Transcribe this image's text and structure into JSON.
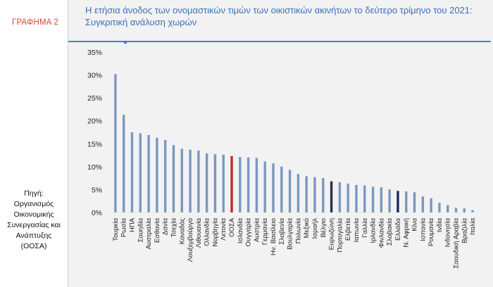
{
  "sidebar": {
    "graph_label": "ΓΡΑΦΗΜΑ 2",
    "source_lines": [
      "Πηγή:",
      "Οργανισμός",
      "Οικονομικής",
      "Συνεργασίας και",
      "Ανάπτυξης",
      "(ΟΟΣΑ)"
    ]
  },
  "header": {
    "title_line1": "Η ετήσια άνοδος των ονομαστικών τιμών των οικιστικών ακινήτων το δεύτερο τρίμηνο του 2021:",
    "title_line2": "Συγκριτική ανάλυση χωρών"
  },
  "colors": {
    "default_bar": "#7a98bf",
    "highlight_red": "#c0282a",
    "highlight_dark": "#2b3242",
    "highlight_navy": "#1b2a63",
    "accent_title": "#3a6fb5"
  },
  "chart_data": {
    "type": "bar",
    "title": "Η ετήσια άνοδος των ονομαστικών τιμών των οικιστικών ακινήτων το δεύτερο τρίμηνο του 2021: Συγκριτική ανάλυση χωρών",
    "ylim": [
      0,
      35
    ],
    "yticks": [
      "0%",
      "5%",
      "10%",
      "15%",
      "20%",
      "25%",
      "30%",
      "35%"
    ],
    "ytick_values": [
      0,
      5,
      10,
      15,
      20,
      25,
      30,
      35
    ],
    "grid": false,
    "categories": [
      "Τουρκία",
      "Ρωσία",
      "ΗΠΑ",
      "Σουηδία",
      "Αυστραλία",
      "Εσθονία",
      "Δανία",
      "Τσεχία",
      "Καναδάς",
      "Λουξεμβούργο",
      "Λιθουανία",
      "Ολλανδία",
      "Νορβηγία",
      "Λετονία",
      "ΟΟΣΑ",
      "Ισλανδία",
      "Ουγγαρία",
      "Αυστρία",
      "Γερμανία",
      "Ην. Βασίλειο",
      "Σλοβενία",
      "Βουλγαρία",
      "Πολωνία",
      "Μεξικό",
      "Ισραήλ",
      "Βέλγιο",
      "Ευρωζώνη",
      "Πορτογαλία",
      "Ελβετία",
      "Ιαπωνία",
      "Γαλλία",
      "Ιρλανδία",
      "Φινλανδία",
      "Σλοβακία",
      "Ελλάδα",
      "Ν. Αφρική",
      "Κίνα",
      "Ισπανία",
      "Ρουμανία",
      "Ινδία",
      "Ινδονησία",
      "Σαουδική Αραβία",
      "Βραζιλία",
      "Ιταλία"
    ],
    "values": [
      30.2,
      21.3,
      17.5,
      17.3,
      16.9,
      16.3,
      15.8,
      14.7,
      13.9,
      13.7,
      13.5,
      12.9,
      12.7,
      12.6,
      12.3,
      12.1,
      12.0,
      11.9,
      11.1,
      10.7,
      10.0,
      9.3,
      8.4,
      7.9,
      7.7,
      7.5,
      6.8,
      6.6,
      6.3,
      6.0,
      5.9,
      5.6,
      5.5,
      5.0,
      4.7,
      4.6,
      4.4,
      3.5,
      3.1,
      2.1,
      1.6,
      1.0,
      0.9,
      0.5
    ],
    "highlight": {
      "ΟΟΣΑ": "highlight_red",
      "Ευρωζώνη": "highlight_dark",
      "Ελλάδα": "highlight_navy"
    }
  }
}
